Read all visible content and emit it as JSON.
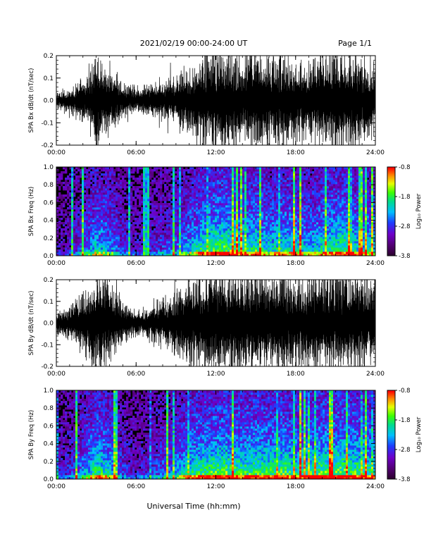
{
  "header": {
    "title": "2021/02/19  00:00-24:00 UT",
    "page": "Page 1/1"
  },
  "footer": {
    "xlabel": "Universal Time (hh:mm)"
  },
  "colors": {
    "trace": "#000000",
    "background": "#ffffff",
    "colormap": [
      "#3a0050",
      "#7a00c8",
      "#2030ff",
      "#00c8ff",
      "#00e080",
      "#40ff00",
      "#ffff00",
      "#ff8000",
      "#ff0000"
    ]
  },
  "chart_data": [
    {
      "type": "line",
      "ylabel": "SPA Bx dB/dt (nT/sec)",
      "xlim": [
        0,
        24
      ],
      "ylim": [
        -0.2,
        0.2
      ],
      "x_ticks": [
        "00:00",
        "06:00",
        "12:00",
        "18:00",
        "24:00"
      ],
      "y_ticks": [
        "0.2",
        "0.1",
        "0.0",
        "-0.1",
        "-0.2"
      ],
      "envelope_hours": [
        0,
        1,
        2,
        3,
        4,
        5,
        6,
        7,
        8,
        9,
        10,
        11,
        12,
        13,
        14,
        15,
        16,
        17,
        18,
        19,
        20,
        21,
        22,
        23,
        24
      ],
      "envelope_amplitude": [
        0.03,
        0.05,
        0.09,
        0.16,
        0.14,
        0.07,
        0.05,
        0.06,
        0.08,
        0.1,
        0.14,
        0.19,
        0.22,
        0.22,
        0.17,
        0.2,
        0.16,
        0.18,
        0.17,
        0.15,
        0.18,
        0.2,
        0.2,
        0.16,
        0.16
      ]
    },
    {
      "type": "heatmap",
      "ylabel": "SPA Bx Freq (Hz)",
      "xlim": [
        0,
        24
      ],
      "ylim": [
        0.0,
        1.0
      ],
      "x_ticks": [
        "00:00",
        "06:00",
        "12:00",
        "18:00",
        "24:00"
      ],
      "y_ticks": [
        "1.0",
        "0.8",
        "0.6",
        "0.4",
        "0.2",
        "0.0"
      ],
      "colorbar": {
        "label": "Log₁₀ Power",
        "ticks": [
          "-0.8",
          "-1.8",
          "-2.8",
          "-3.8"
        ],
        "range": [
          -3.8,
          -0.8
        ]
      }
    },
    {
      "type": "line",
      "ylabel": "SPA By dB/dt (nT/sec)",
      "xlim": [
        0,
        24
      ],
      "ylim": [
        -0.2,
        0.2
      ],
      "x_ticks": [
        "00:00",
        "06:00",
        "12:00",
        "18:00",
        "24:00"
      ],
      "y_ticks": [
        "0.2",
        "0.1",
        "0.0",
        "-0.1",
        "-0.2"
      ],
      "envelope_hours": [
        0,
        1,
        2,
        3,
        4,
        5,
        6,
        7,
        8,
        9,
        10,
        11,
        12,
        13,
        14,
        15,
        16,
        17,
        18,
        19,
        20,
        21,
        22,
        23,
        24
      ],
      "envelope_amplitude": [
        0.04,
        0.07,
        0.12,
        0.2,
        0.16,
        0.08,
        0.05,
        0.07,
        0.1,
        0.13,
        0.18,
        0.2,
        0.22,
        0.22,
        0.2,
        0.22,
        0.2,
        0.22,
        0.18,
        0.2,
        0.22,
        0.22,
        0.22,
        0.2,
        0.18
      ]
    },
    {
      "type": "heatmap",
      "ylabel": "SPA By Freq (Hz)",
      "xlim": [
        0,
        24
      ],
      "ylim": [
        0.0,
        1.0
      ],
      "x_ticks": [
        "00:00",
        "06:00",
        "12:00",
        "18:00",
        "24:00"
      ],
      "y_ticks": [
        "1.0",
        "0.8",
        "0.6",
        "0.4",
        "0.2",
        "0.0"
      ],
      "colorbar": {
        "label": "Log₁₀ Power",
        "ticks": [
          "-0.8",
          "-1.8",
          "-2.8",
          "-3.8"
        ],
        "range": [
          -3.8,
          -0.8
        ]
      }
    }
  ]
}
